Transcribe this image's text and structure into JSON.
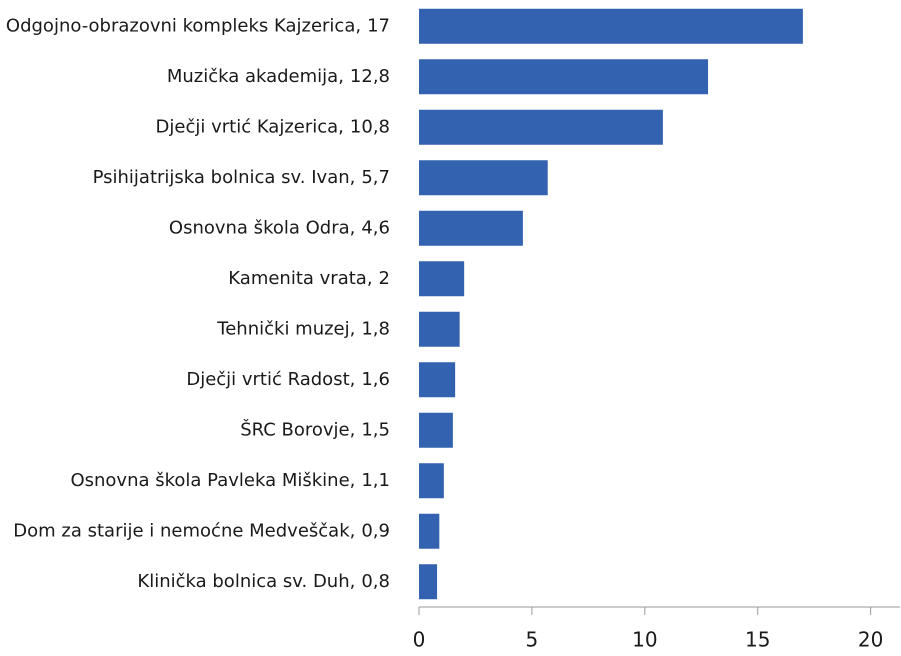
{
  "chart_data": {
    "type": "barh",
    "categories": [
      "Odgojno-obrazovni kompleks Kajzerica,",
      "Muzička akademija,",
      "Dječji vrtić Kajzerica,",
      "Psihijatrijska bolnica sv. Ivan,",
      "Osnovna škola Odra,",
      "Kamenita vrata,",
      "Tehnički muzej,",
      "Dječji vrtić Radost,",
      "ŠRC Borovje,",
      "Osnovna škola Pavleka Miškine,",
      "Dom za starije i nemoćne Medveščak,",
      "Klinička bolnica sv. Duh,"
    ],
    "values": [
      17,
      12.8,
      10.8,
      5.7,
      4.6,
      2,
      1.8,
      1.6,
      1.5,
      1.1,
      0.9,
      0.8
    ],
    "value_labels": [
      "17",
      "12,8",
      "10,8",
      "5,7",
      "4,6",
      "2",
      "1,8",
      "1,6",
      "1,5",
      "1,1",
      "0,9",
      "0,8"
    ],
    "color": "#3362b0",
    "xlim": [
      0,
      21.3
    ],
    "xticks": [
      0,
      5,
      10,
      15,
      20
    ]
  }
}
